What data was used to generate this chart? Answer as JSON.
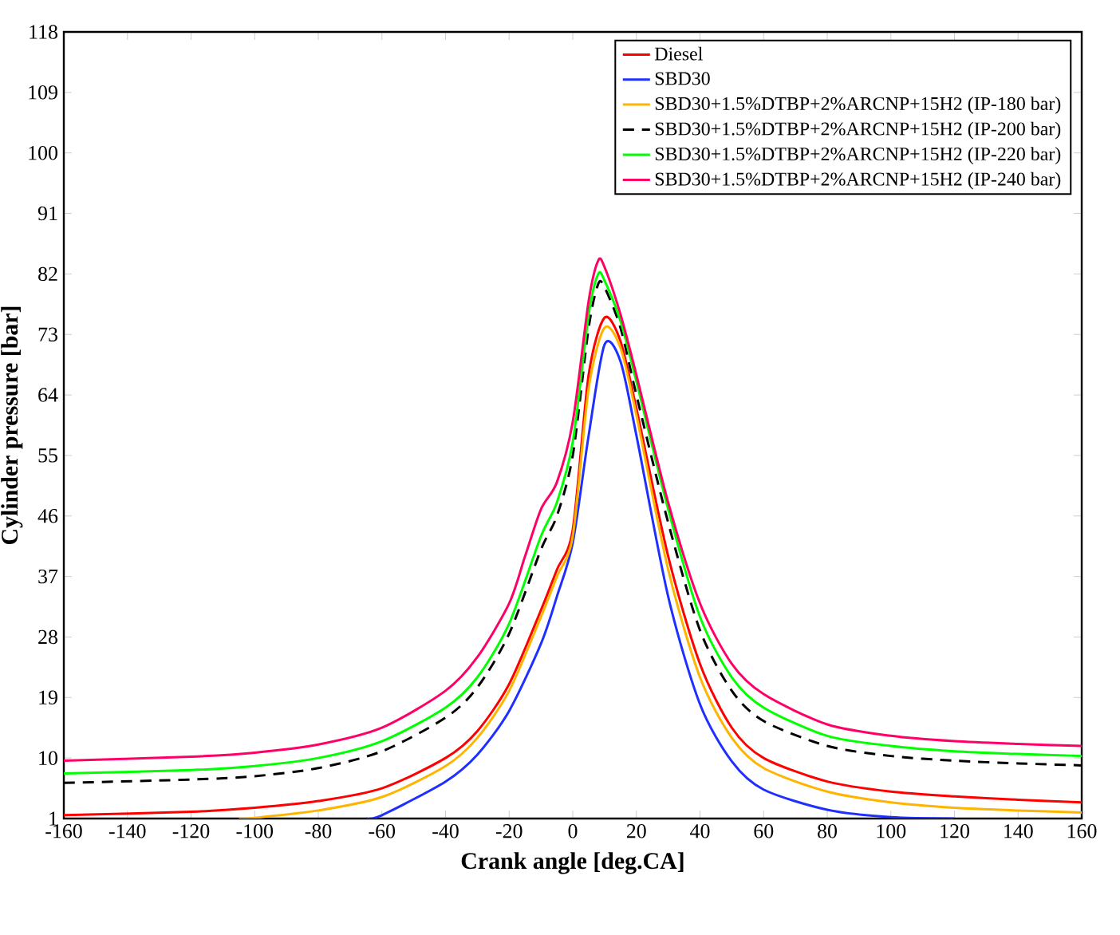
{
  "chart_data": {
    "type": "line",
    "xlabel": "Crank angle [deg.CA]",
    "ylabel": "Cylinder pressure [bar]",
    "xlim": [
      -160,
      160
    ],
    "xticks": [
      -160,
      -140,
      -120,
      -100,
      -80,
      -60,
      -40,
      -20,
      0,
      20,
      40,
      60,
      80,
      100,
      120,
      140,
      160
    ],
    "ylim": [
      1,
      118
    ],
    "yticks": [
      1,
      10,
      19,
      28,
      37,
      46,
      55,
      64,
      73,
      82,
      91,
      100,
      109,
      118
    ],
    "legend": "top right",
    "grid": false,
    "series": [
      {
        "name": "Diesel",
        "color": "#ff0000",
        "line_style": "solid",
        "x": [
          -160,
          -120,
          -100,
          -80,
          -60,
          -40,
          -30,
          -20,
          -10,
          -5,
          0,
          5,
          10,
          15,
          20,
          30,
          40,
          50,
          60,
          80,
          100,
          120,
          140,
          160
        ],
        "values": [
          1.5,
          2,
          2.6,
          3.6,
          5.5,
          10,
          14,
          21,
          32,
          38,
          44,
          67,
          75.5,
          72,
          62,
          40,
          24,
          14.5,
          10,
          6.5,
          5,
          4.3,
          3.8,
          3.4
        ]
      },
      {
        "name": "SBD30",
        "color": "#1f2fff",
        "line_style": "solid",
        "x": [
          -65,
          -60,
          -40,
          -30,
          -20,
          -10,
          -5,
          0,
          5,
          10,
          15,
          20,
          30,
          40,
          50,
          60,
          80,
          100,
          120
        ],
        "values": [
          1,
          1.5,
          6.5,
          10.5,
          17,
          27,
          34,
          42,
          58,
          71.5,
          69,
          58,
          34,
          18,
          9.5,
          5.3,
          2.3,
          1.2,
          1
        ]
      },
      {
        "name": "SBD30+1.5%DTBP+2%ARCNP+15H2 (IP-180 bar)",
        "color": "#ffb400",
        "line_style": "solid",
        "x": [
          -105,
          -100,
          -80,
          -60,
          -40,
          -30,
          -20,
          -10,
          -5,
          0,
          5,
          10,
          15,
          20,
          30,
          40,
          50,
          60,
          80,
          100,
          120,
          140,
          160
        ],
        "values": [
          1,
          1.1,
          2.2,
          4.2,
          8.8,
          13,
          20,
          31,
          37,
          43,
          65,
          74,
          71,
          61,
          38,
          22,
          13,
          8.5,
          5,
          3.4,
          2.6,
          2.2,
          1.9
        ]
      },
      {
        "name": "SBD30+1.5%DTBP+2%ARCNP+15H2 (IP-200 bar)",
        "color": "#000000",
        "line_style": "dashed",
        "x": [
          -160,
          -120,
          -100,
          -80,
          -60,
          -40,
          -30,
          -20,
          -10,
          -5,
          0,
          5,
          8,
          10,
          15,
          20,
          30,
          40,
          50,
          60,
          80,
          100,
          120,
          140,
          160
        ],
        "values": [
          6.3,
          6.8,
          7.3,
          8.5,
          11,
          16,
          20.5,
          28.5,
          41,
          46,
          55,
          74,
          80.5,
          80,
          74,
          64,
          45,
          29,
          20,
          15.5,
          11.8,
          10.3,
          9.6,
          9.2,
          8.9
        ]
      },
      {
        "name": "SBD30+1.5%DTBP+2%ARCNP+15H2 (IP-220 bar)",
        "color": "#00ff00",
        "line_style": "solid",
        "x": [
          -160,
          -120,
          -100,
          -80,
          -60,
          -40,
          -30,
          -20,
          -10,
          -5,
          0,
          5,
          8,
          10,
          15,
          20,
          30,
          40,
          50,
          60,
          80,
          100,
          120,
          140,
          160
        ],
        "values": [
          7.7,
          8.2,
          8.8,
          10,
          12.5,
          17.5,
          22,
          30,
          43,
          48,
          57,
          76,
          82,
          81,
          75,
          66,
          47,
          31,
          22,
          17.5,
          13.3,
          11.8,
          11,
          10.6,
          10.3
        ]
      },
      {
        "name": "SBD30+1.5%DTBP+2%ARCNP+15H2 (IP-240 bar)",
        "color": "#ff0066",
        "line_style": "solid",
        "x": [
          -160,
          -120,
          -100,
          -80,
          -60,
          -40,
          -30,
          -20,
          -15,
          -10,
          -5,
          0,
          5,
          8,
          10,
          15,
          20,
          30,
          40,
          50,
          60,
          80,
          100,
          120,
          140,
          160
        ],
        "values": [
          9.6,
          10.2,
          10.8,
          12,
          14.5,
          20,
          25,
          33,
          40,
          47,
          51,
          60,
          78,
          84,
          83,
          76,
          67,
          48,
          33,
          24,
          19.5,
          15,
          13.3,
          12.5,
          12.1,
          11.8
        ]
      }
    ]
  }
}
